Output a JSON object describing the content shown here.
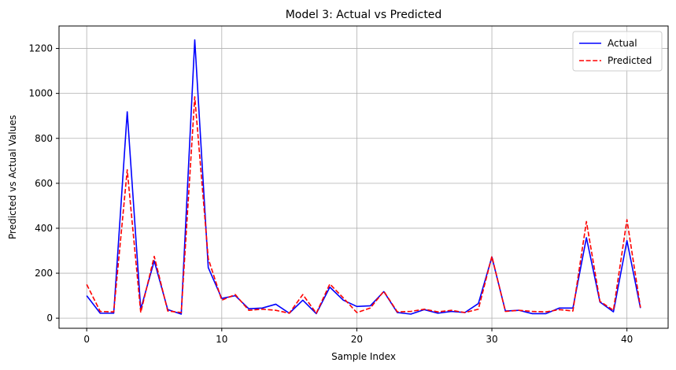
{
  "chart_data": {
    "type": "line",
    "title": "Model 3: Actual vs Predicted",
    "xlabel": "Sample Index",
    "ylabel": "Predicted vs Actual Values",
    "xlim": [
      -2.05,
      43.05
    ],
    "ylim": [
      -45,
      1300
    ],
    "xticks": [
      0,
      10,
      20,
      30,
      40
    ],
    "yticks": [
      0,
      200,
      400,
      600,
      800,
      1000,
      1200
    ],
    "grid": true,
    "legend_position": "top-right",
    "x": [
      0,
      1,
      2,
      3,
      4,
      5,
      6,
      7,
      8,
      9,
      10,
      11,
      12,
      13,
      14,
      15,
      16,
      17,
      18,
      19,
      20,
      21,
      22,
      23,
      24,
      25,
      26,
      27,
      28,
      29,
      30,
      31,
      32,
      33,
      34,
      35,
      36,
      37,
      38,
      39,
      40,
      41
    ],
    "series": [
      {
        "name": "Actual",
        "color": "#0000ff",
        "style": "solid",
        "values": [
          100,
          22,
          22,
          918,
          40,
          255,
          38,
          18,
          1238,
          225,
          88,
          100,
          42,
          45,
          62,
          22,
          80,
          20,
          138,
          80,
          52,
          55,
          118,
          25,
          18,
          38,
          22,
          30,
          25,
          65,
          272,
          32,
          35,
          20,
          20,
          45,
          45,
          358,
          72,
          28,
          345,
          45
        ]
      },
      {
        "name": "Predicted",
        "color": "#ff0000",
        "style": "dashed",
        "values": [
          150,
          30,
          28,
          660,
          25,
          275,
          32,
          25,
          985,
          265,
          80,
          105,
          35,
          40,
          35,
          22,
          105,
          22,
          152,
          90,
          25,
          45,
          120,
          28,
          30,
          40,
          28,
          35,
          25,
          40,
          275,
          30,
          35,
          30,
          28,
          38,
          32,
          430,
          75,
          35,
          438,
          48
        ]
      }
    ]
  }
}
